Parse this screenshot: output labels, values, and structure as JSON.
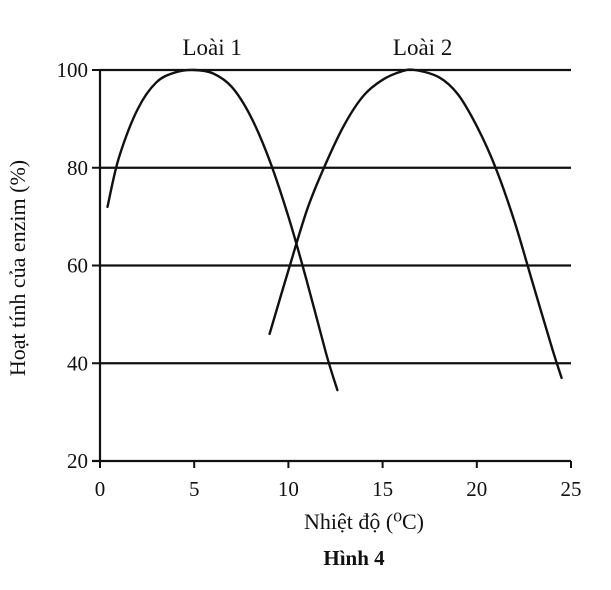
{
  "chart_data": {
    "type": "line",
    "caption": "Hình 4",
    "xlabel": "Nhiệt độ (⁰C)",
    "ylabel": "Hoạt tính của enzim (%)",
    "xlim": [
      0,
      25
    ],
    "ylim": [
      20,
      100
    ],
    "x_ticks": [
      0,
      5,
      10,
      15,
      20,
      25
    ],
    "y_ticks": [
      20,
      40,
      60,
      80,
      100
    ],
    "grid": "horizontal",
    "series": [
      {
        "name": "Loài 1",
        "x": [
          0.4,
          1,
          2,
          3,
          4,
          5,
          6,
          7,
          8,
          9,
          10,
          11,
          12,
          12.6
        ],
        "y": [
          72,
          82,
          92,
          97.5,
          99.5,
          100,
          99.3,
          96.5,
          90.5,
          81.5,
          70,
          56.5,
          42,
          34.5
        ]
      },
      {
        "name": "Loài 2",
        "x": [
          9,
          10,
          11,
          12,
          13,
          14,
          15,
          16,
          16.7,
          18,
          19,
          20,
          21,
          22,
          23,
          24,
          24.5
        ],
        "y": [
          46,
          59,
          71.5,
          81,
          89,
          94.8,
          98,
          99.7,
          100,
          98.5,
          95,
          88.5,
          80,
          69,
          56,
          43,
          37
        ]
      }
    ]
  }
}
